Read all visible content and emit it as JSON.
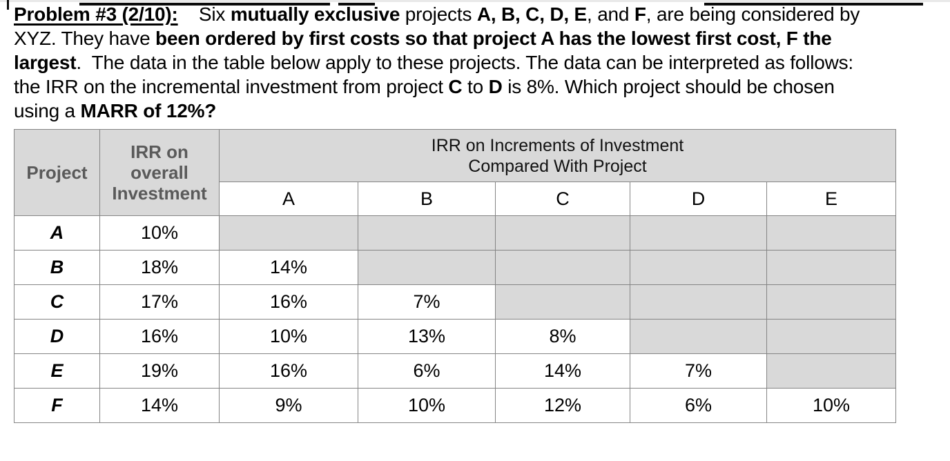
{
  "problem": {
    "lines": [
      [
        {
          "text": "Problem #3 (2/10):",
          "bold": true,
          "underline": true
        },
        {
          "text": "    Six ",
          "bold": false
        },
        {
          "text": "mutually exclusive",
          "bold": true
        },
        {
          "text": " projects ",
          "bold": false
        },
        {
          "text": "A, B, C, D, E",
          "bold": true
        },
        {
          "text": ", and ",
          "bold": false
        },
        {
          "text": "F",
          "bold": true
        },
        {
          "text": ", are being considered by",
          "bold": false
        }
      ],
      [
        {
          "text": "XYZ. They have ",
          "bold": false
        },
        {
          "text": "been ordered by first costs so that project A has the lowest first cost, F the",
          "bold": true
        }
      ],
      [
        {
          "text": "largest",
          "bold": true
        },
        {
          "text": ".  The data in the table below apply to these projects. The data can be interpreted as follows:",
          "bold": false
        }
      ],
      [
        {
          "text": "the IRR on the incremental investment from project ",
          "bold": false
        },
        {
          "text": "C",
          "bold": true
        },
        {
          "text": " to ",
          "bold": false
        },
        {
          "text": "D",
          "bold": true
        },
        {
          "text": " is 8%. Which project should be chosen",
          "bold": false
        }
      ],
      [
        {
          "text": "using a ",
          "bold": false
        },
        {
          "text": "MARR of 12%?",
          "bold": true
        }
      ]
    ]
  },
  "table": {
    "header": {
      "project_label": "Project",
      "overall_label": "IRR on overall Investment",
      "increments_line1": "IRR on Increments of Investment",
      "increments_line2": "Compared With Project",
      "comparison_columns": [
        "A",
        "B",
        "C",
        "D",
        "E"
      ]
    },
    "rows": [
      {
        "project": "A",
        "overall_irr": "10%",
        "comparisons": [
          null,
          null,
          null,
          null,
          null
        ]
      },
      {
        "project": "B",
        "overall_irr": "18%",
        "comparisons": [
          "14%",
          null,
          null,
          null,
          null
        ]
      },
      {
        "project": "C",
        "overall_irr": "17%",
        "comparisons": [
          "16%",
          "7%",
          null,
          null,
          null
        ]
      },
      {
        "project": "D",
        "overall_irr": "16%",
        "comparisons": [
          "10%",
          "13%",
          "8%",
          null,
          null
        ]
      },
      {
        "project": "E",
        "overall_irr": "19%",
        "comparisons": [
          "16%",
          "6%",
          "14%",
          "7%",
          null
        ]
      },
      {
        "project": "F",
        "overall_irr": "14%",
        "comparisons": [
          "9%",
          "10%",
          "12%",
          "6%",
          "10%"
        ]
      }
    ]
  },
  "colors": {
    "shaded_cell": "#d9d9d9",
    "header_text": "#5a5a5a",
    "border": "#848484",
    "body_text": "#000000"
  }
}
